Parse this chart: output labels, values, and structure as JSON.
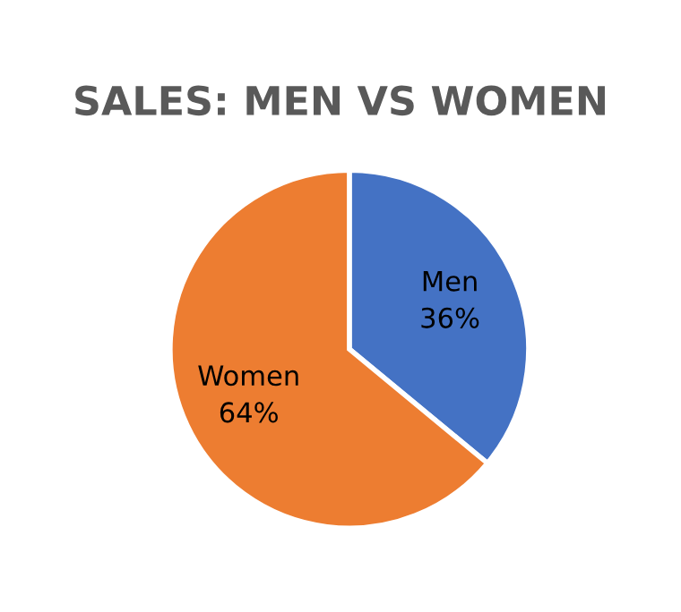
{
  "chart_data": {
    "type": "pie",
    "title": "SALES: MEN VS WOMEN",
    "categories": [
      "Men",
      "Women"
    ],
    "values": [
      36,
      64
    ],
    "colors": [
      "#4472c4",
      "#ed7d31"
    ],
    "value_labels": [
      "36%",
      "64%"
    ]
  }
}
